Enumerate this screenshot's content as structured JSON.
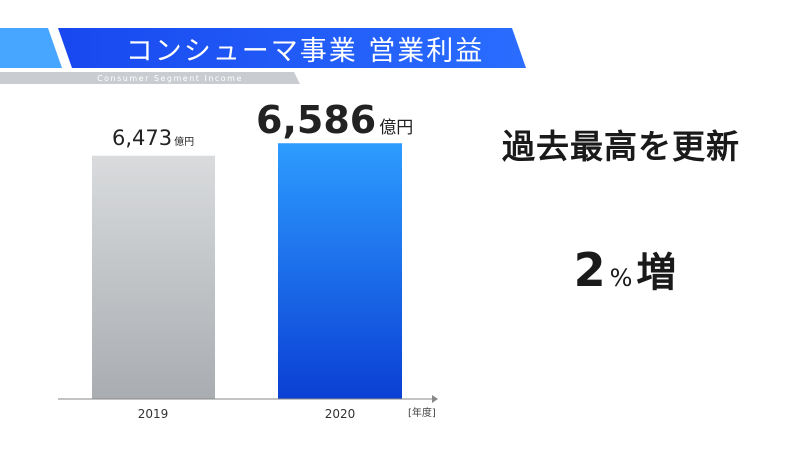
{
  "header": {
    "title": "コンシューマ事業 営業利益",
    "subtitle": "Consumer Segment Income",
    "colors": {
      "banner": "#1e5cff",
      "banner_accent": "#3a9bff",
      "subbar": "#c8cbcf"
    }
  },
  "chart_data": {
    "type": "bar",
    "categories": [
      "2019",
      "2020"
    ],
    "values": [
      6473,
      6586
    ],
    "data_labels": [
      {
        "number": "6,473",
        "unit": "億円"
      },
      {
        "number": "6,586",
        "unit": "億円"
      }
    ],
    "x_axis_unit": "[年度]",
    "ylim": [
      0,
      6800
    ],
    "colors": {
      "bar_2019": "#b9bdc1",
      "bar_2020": "#1e6ff0"
    }
  },
  "callouts": {
    "record": "過去最高を更新",
    "growth_number": "2",
    "growth_percent": "%",
    "growth_word": "増"
  }
}
